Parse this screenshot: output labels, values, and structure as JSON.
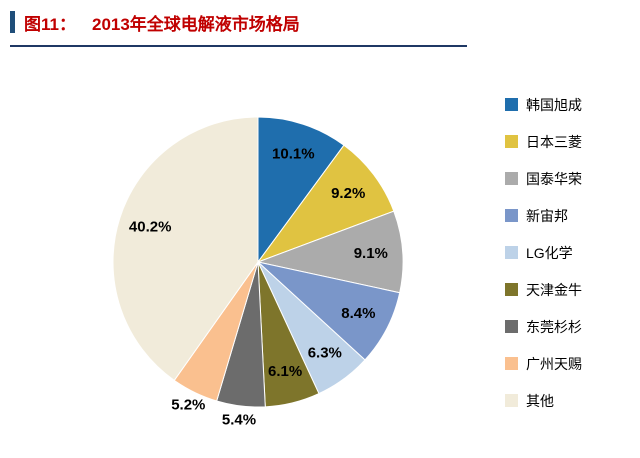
{
  "header": {
    "figure_label": "图11：",
    "title": "2013年全球电解液市场格局",
    "accent_color": "#1F4E79",
    "underline_color": "#1F3864",
    "title_color": "#C00000"
  },
  "chart_data": {
    "type": "pie",
    "title": "2013年全球电解液市场格局",
    "labels": [
      "韩国旭成",
      "日本三菱",
      "国泰华荣",
      "新宙邦",
      "LG化学",
      "天津金牛",
      "东莞杉杉",
      "广州天赐",
      "其他"
    ],
    "values": [
      10.1,
      9.2,
      9.1,
      8.4,
      6.3,
      6.1,
      5.4,
      5.2,
      40.2
    ],
    "colors": [
      "#1F6EAD",
      "#E0C341",
      "#ABABAB",
      "#7A96C9",
      "#BDD2E8",
      "#7E752B",
      "#6C6C6C",
      "#FAC08F",
      "#F1EBDA"
    ],
    "label_format": "percent",
    "start_angle_deg": 0,
    "direction": "clockwise",
    "legend_position": "right",
    "slice_border_color": "#FFFFFF"
  }
}
